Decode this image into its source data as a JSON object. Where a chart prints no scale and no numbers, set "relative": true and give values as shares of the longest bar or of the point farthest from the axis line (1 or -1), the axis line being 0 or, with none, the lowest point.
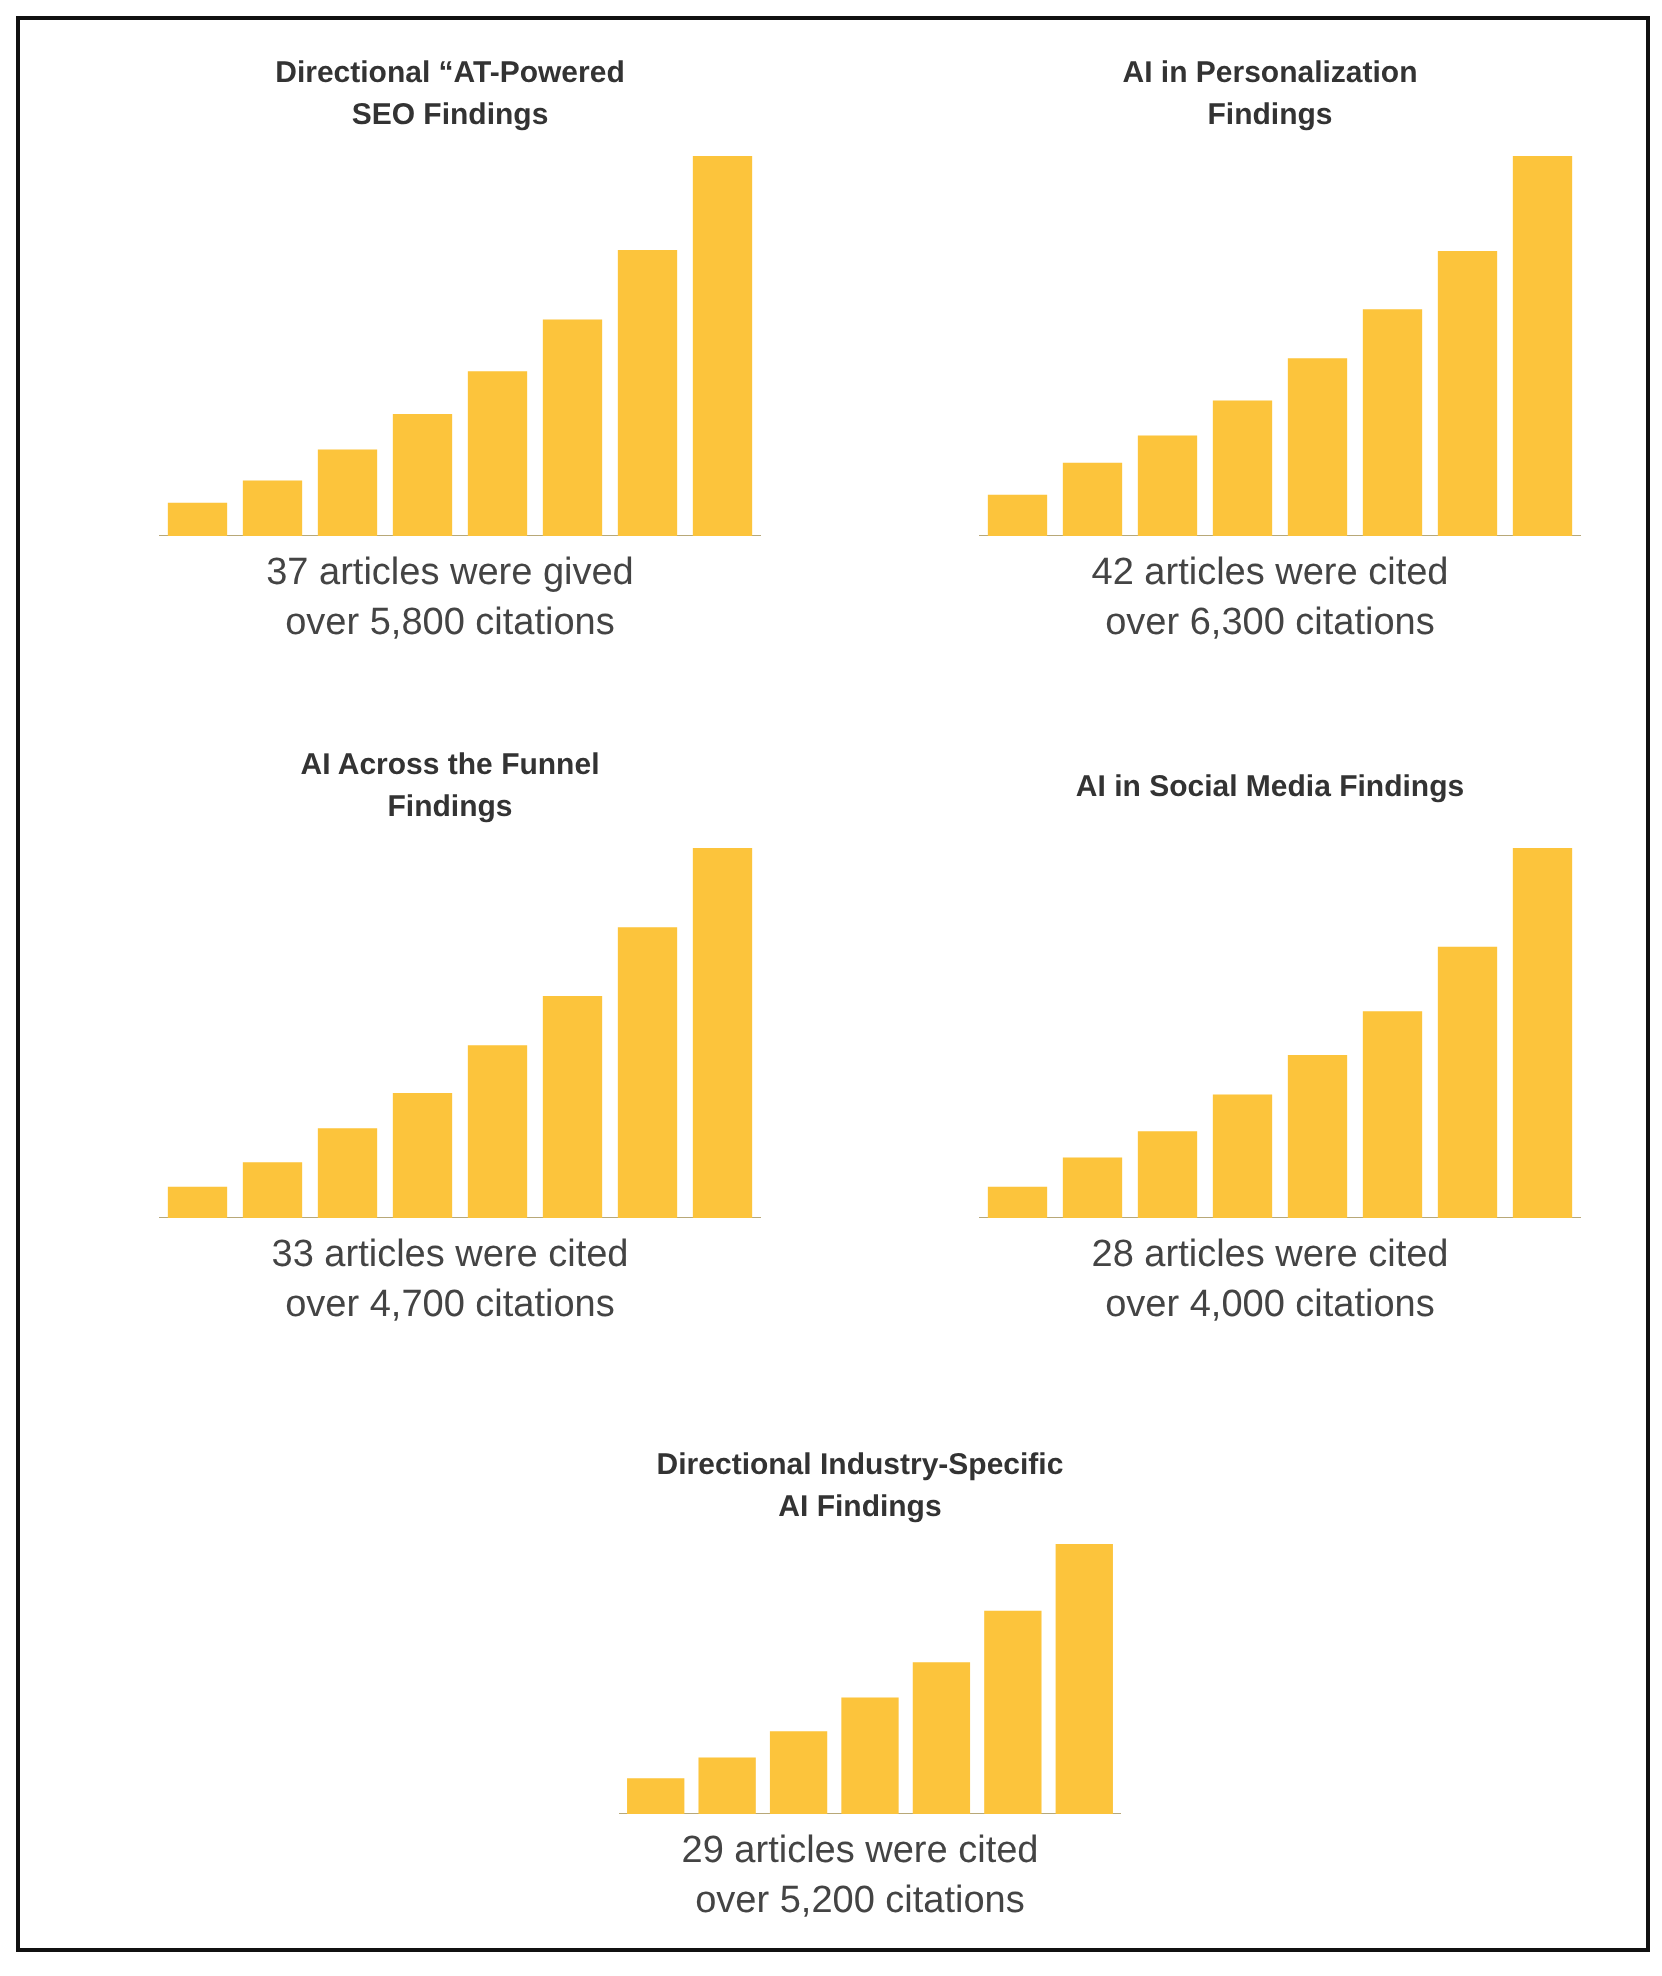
{
  "chart_data": [
    {
      "type": "bar",
      "title": "Directional “AT-Powered\nSEO Findings",
      "relative": true,
      "categories": [
        null,
        null,
        null,
        null,
        null,
        null,
        null,
        null
      ],
      "values": [
        0.086,
        0.144,
        0.226,
        0.319,
        0.432,
        0.568,
        0.751,
        1
      ],
      "color": "#fcc43c",
      "annotations": [
        "37 articles were gived",
        "over 5,800 citations"
      ]
    },
    {
      "type": "bar",
      "title": "AI in Personalization\nFindings",
      "relative": true,
      "categories": [
        null,
        null,
        null,
        null,
        null,
        null,
        null,
        null
      ],
      "values": [
        0.107,
        0.191,
        0.263,
        0.355,
        0.466,
        0.595,
        0.748,
        1
      ],
      "color": "#fcc43c",
      "annotations": [
        "42 articles were cited",
        "over 6,300 citations"
      ]
    },
    {
      "type": "bar",
      "title": "AI Across the Funnel\nFindings",
      "relative": true,
      "categories": [
        null,
        null,
        null,
        null,
        null,
        null,
        null,
        null
      ],
      "values": [
        0.083,
        0.149,
        0.241,
        0.336,
        0.465,
        0.598,
        0.784,
        1
      ],
      "color": "#fcc43c",
      "annotations": [
        "33 articles were cited",
        "over 4,700 citations"
      ]
    },
    {
      "type": "bar",
      "title": "AI in Social Media Findings",
      "relative": true,
      "categories": [
        null,
        null,
        null,
        null,
        null,
        null,
        null,
        null
      ],
      "values": [
        0.083,
        0.162,
        0.233,
        0.332,
        0.439,
        0.557,
        0.731,
        1
      ],
      "color": "#fcc43c",
      "annotations": [
        "28 articles were cited",
        "over 4,000 citations"
      ]
    },
    {
      "type": "bar",
      "title": "Directional Industry-Specific\nAI Findings",
      "relative": true,
      "categories": [
        null,
        null,
        null,
        null,
        null,
        null,
        null
      ],
      "values": [
        0.13,
        0.207,
        0.304,
        0.429,
        0.56,
        0.75,
        1
      ],
      "color": "#fcc43c",
      "annotations": [
        "29 articles were cited",
        "over 5,200 citations"
      ]
    }
  ]
}
